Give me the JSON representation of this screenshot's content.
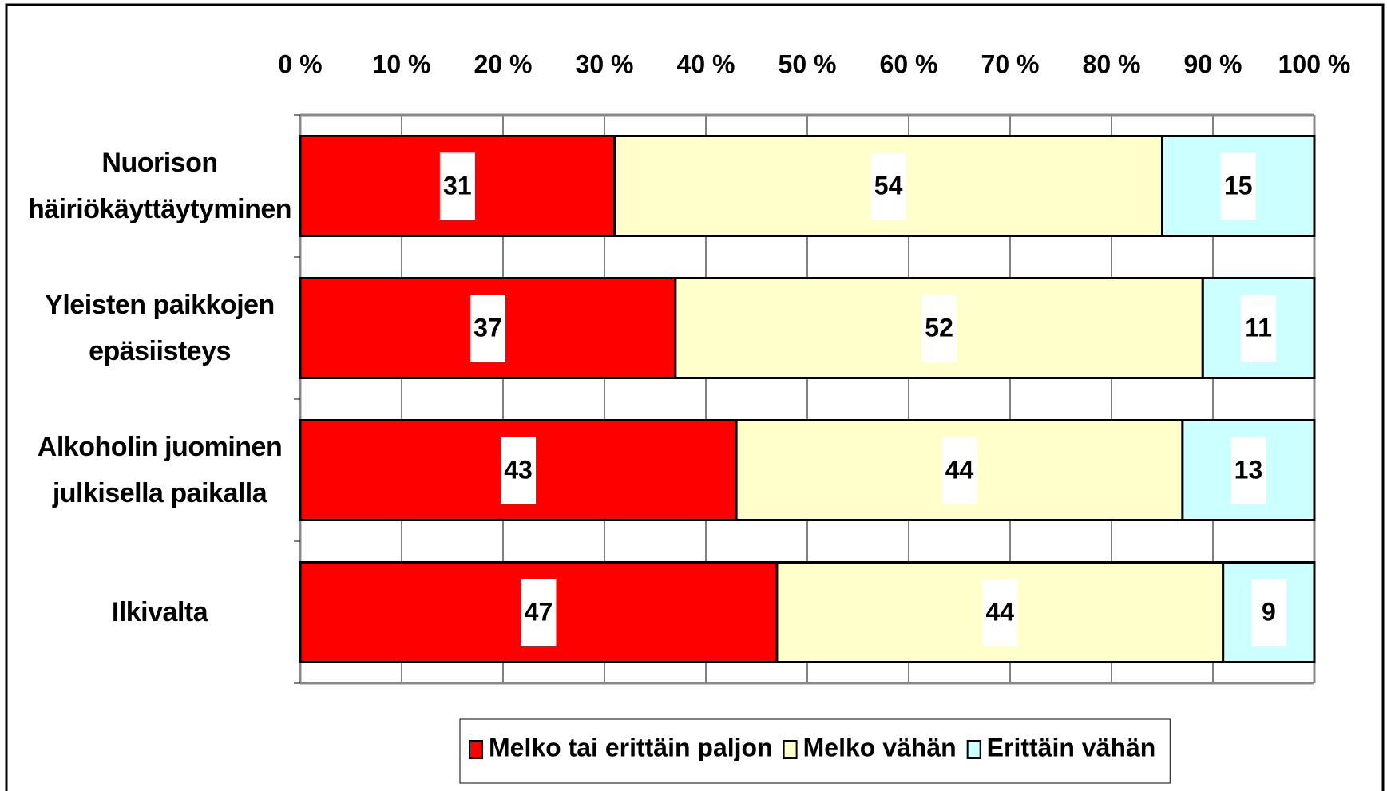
{
  "chart_data": {
    "type": "bar",
    "orientation": "horizontal",
    "stacked": true,
    "categories": [
      "Nuorison\nhäiriökäyttäytyminen",
      "Yleisten paikkojen\nepäsiisteys",
      "Alkoholin juominen\njulkisella paikalla",
      "Ilkivalta"
    ],
    "series": [
      {
        "name": "Melko tai erittäin paljon",
        "color": "#ff0000",
        "values": [
          31,
          37,
          43,
          47
        ]
      },
      {
        "name": "Melko vähän",
        "color": "#ffffcc",
        "values": [
          54,
          52,
          44,
          44
        ]
      },
      {
        "name": "Erittäin vähän",
        "color": "#ccffff",
        "values": [
          15,
          11,
          13,
          9
        ]
      }
    ],
    "xlim": [
      0,
      100
    ],
    "xticks": [
      {
        "value": 0,
        "label": "0 %"
      },
      {
        "value": 10,
        "label": "10 %"
      },
      {
        "value": 20,
        "label": "20 %"
      },
      {
        "value": 30,
        "label": "30 %"
      },
      {
        "value": 40,
        "label": "40 %"
      },
      {
        "value": 50,
        "label": "50 %"
      },
      {
        "value": 60,
        "label": "60 %"
      },
      {
        "value": 70,
        "label": "70 %"
      },
      {
        "value": 80,
        "label": "80 %"
      },
      {
        "value": 90,
        "label": "90 %"
      },
      {
        "value": 100,
        "label": "100 %"
      }
    ],
    "grid": true,
    "legend": "bottom"
  }
}
